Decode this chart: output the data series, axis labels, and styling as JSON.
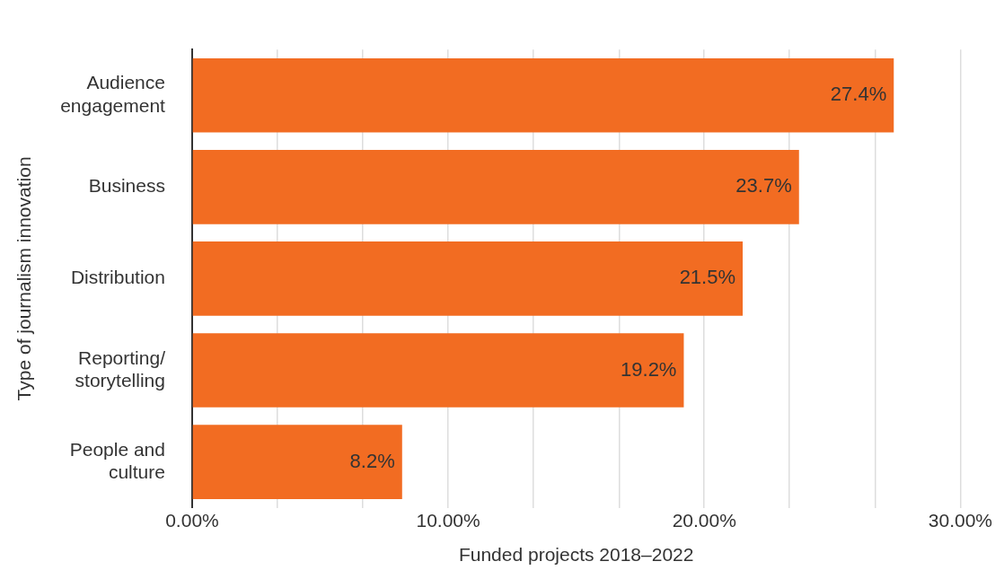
{
  "chart_data": {
    "type": "bar",
    "orientation": "horizontal",
    "xlabel": "Funded projects 2018–2022",
    "ylabel": "Type of journalism innovation",
    "categories": [
      "Audience engagement",
      "Business",
      "Distribution",
      "Reporting/ storytelling",
      "People and culture"
    ],
    "values": [
      27.4,
      23.7,
      21.5,
      19.2,
      8.2
    ],
    "value_labels": [
      "27.4%",
      "23.7%",
      "21.5%",
      "19.2%",
      "8.2%"
    ],
    "color": "#f26c22",
    "xlim": [
      0,
      30
    ],
    "xticks": [
      {
        "value": 0,
        "label": "0.00%"
      },
      {
        "value": 3.33,
        "label": null
      },
      {
        "value": 6.67,
        "label": null
      },
      {
        "value": 10,
        "label": "10.00%"
      },
      {
        "value": 13.33,
        "label": null
      },
      {
        "value": 16.67,
        "label": null
      },
      {
        "value": 20,
        "label": "20.00%"
      },
      {
        "value": 23.33,
        "label": null
      },
      {
        "value": 26.67,
        "label": null
      },
      {
        "value": 30,
        "label": "30.00%"
      }
    ],
    "grid": "x",
    "legend": false
  }
}
